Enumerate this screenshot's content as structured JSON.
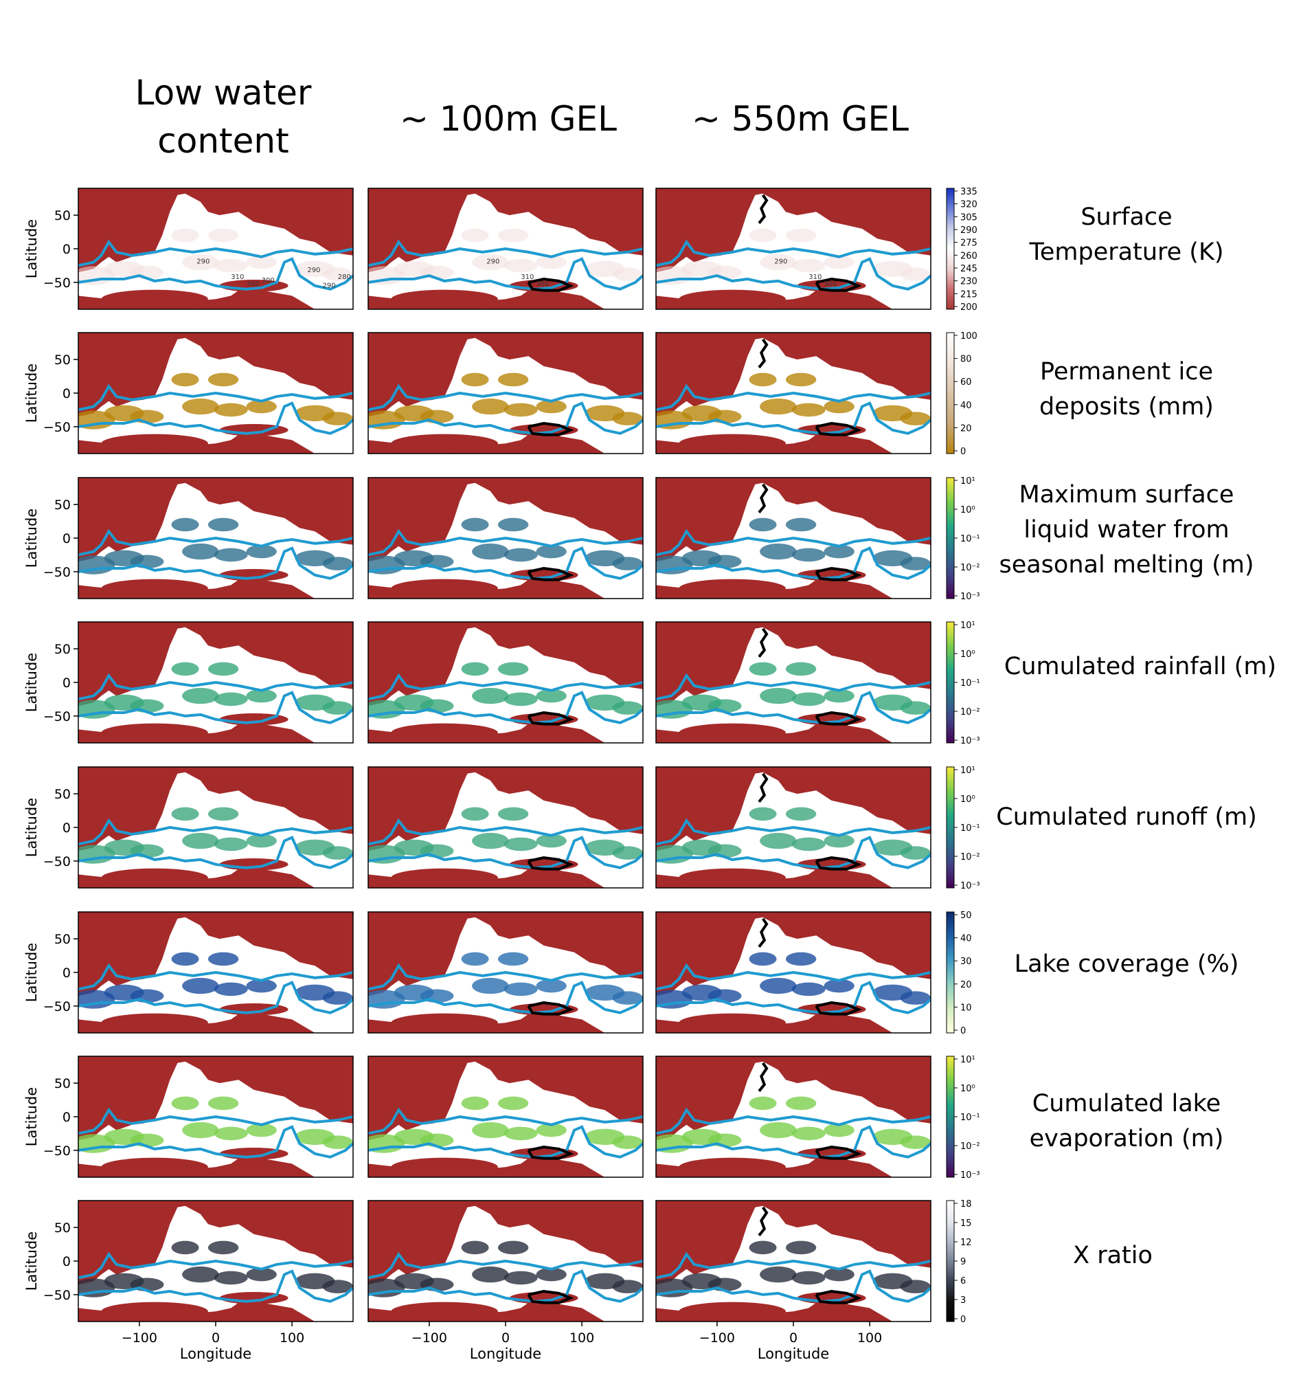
{
  "column_titles": [
    "Low water\ncontent",
    "~ 100m GEL",
    "~ 550m GEL"
  ],
  "row_labels": [
    "Surface\nTemperature (K)",
    "Permanent ice\ndeposits (mm)",
    "Maximum surface\nliquid water from\nseasonal melting (m)",
    "Cumulated rainfall (m)",
    "Cumulated runoff (m)",
    "Lake coverage (%)",
    "Cumulated lake\nevaporation (m)",
    "X ratio"
  ],
  "colors": {
    "mask": "#a52a2a",
    "shoreline": "#1f9bd0",
    "lake_outline": "#000000",
    "contour": "#555555"
  },
  "chart_data": {
    "type": "heatmap",
    "layout": "8 rows x 3 columns of latitude-longitude maps",
    "xlabel": "Longitude",
    "ylabel": "Latitude",
    "xlim": [
      -180,
      180
    ],
    "ylim": [
      -90,
      90
    ],
    "xticks": [
      -100,
      0,
      100
    ],
    "xtick_labels": [
      "−100",
      "0",
      "100"
    ],
    "yticks": [
      50,
      0,
      -50
    ],
    "ytick_labels": [
      "50",
      "0",
      "−50"
    ],
    "contour_labels": [
      "290",
      "300",
      "310",
      "290",
      "300",
      "290",
      "280"
    ],
    "colorbars": [
      {
        "ticks": [
          "335",
          "320",
          "305",
          "290",
          "275",
          "260",
          "245",
          "230",
          "215",
          "200"
        ],
        "colors": [
          "#1530c0",
          "#6a7ed8",
          "#c6cde8",
          "#ffffff",
          "#eed3d3",
          "#cc7070",
          "#a83535"
        ]
      },
      {
        "ticks": [
          "100",
          "80",
          "60",
          "40",
          "20",
          "0"
        ],
        "colors": [
          "#ffffff",
          "#f2e6dc",
          "#dcc4a8",
          "#c9a978",
          "#b8860b"
        ]
      },
      {
        "ticks": [
          "10¹",
          "10⁰",
          "10⁻¹",
          "10⁻²",
          "10⁻³"
        ],
        "colors": [
          "#f3e93a",
          "#7ccf4c",
          "#23a884",
          "#2a788e",
          "#414487",
          "#440154"
        ]
      },
      {
        "ticks": [
          "10¹",
          "10⁰",
          "10⁻¹",
          "10⁻²",
          "10⁻³"
        ],
        "colors": [
          "#f3e93a",
          "#7ccf4c",
          "#23a884",
          "#2a788e",
          "#414487",
          "#440154"
        ]
      },
      {
        "ticks": [
          "10¹",
          "10⁰",
          "10⁻¹",
          "10⁻²",
          "10⁻³"
        ],
        "colors": [
          "#f3e93a",
          "#7ccf4c",
          "#23a884",
          "#2a788e",
          "#414487",
          "#440154"
        ]
      },
      {
        "ticks": [
          "50",
          "40",
          "30",
          "20",
          "10",
          "0"
        ],
        "colors": [
          "#0d2a6e",
          "#1d5fa8",
          "#3f9bc4",
          "#8fd0c0",
          "#d6edc0",
          "#ffffe0"
        ]
      },
      {
        "ticks": [
          "10¹",
          "10⁰",
          "10⁻¹",
          "10⁻²",
          "10⁻³"
        ],
        "colors": [
          "#f3e93a",
          "#7ccf4c",
          "#23a884",
          "#2a788e",
          "#414487",
          "#440154"
        ]
      },
      {
        "ticks": [
          "18",
          "15",
          "12",
          "9",
          "6",
          "3",
          "0"
        ],
        "colors": [
          "#ffffff",
          "#e6e9ef",
          "#b5bccb",
          "#7a8498",
          "#3d4356",
          "#111111",
          "#000000"
        ]
      }
    ],
    "panel_fills": [
      [
        "#f2dede",
        "#f2dede",
        "#f2dede"
      ],
      [
        "#b8860b",
        "#b8860b",
        "#b8860b"
      ],
      [
        "#2f6f8e",
        "#2f6f8e",
        "#2f6f8e"
      ],
      [
        "#37a77a",
        "#37a77a",
        "#37a77a"
      ],
      [
        "#3fa67e",
        "#3fa67e",
        "#3fa67e"
      ],
      [
        "#1d4fa0",
        "#2a6fb0",
        "#1d4fa0"
      ],
      [
        "#7ccf4c",
        "#7ccf4c",
        "#7ccf4c"
      ],
      [
        "#2a2f3e",
        "#2a2f3e",
        "#2a2f3e"
      ]
    ]
  }
}
